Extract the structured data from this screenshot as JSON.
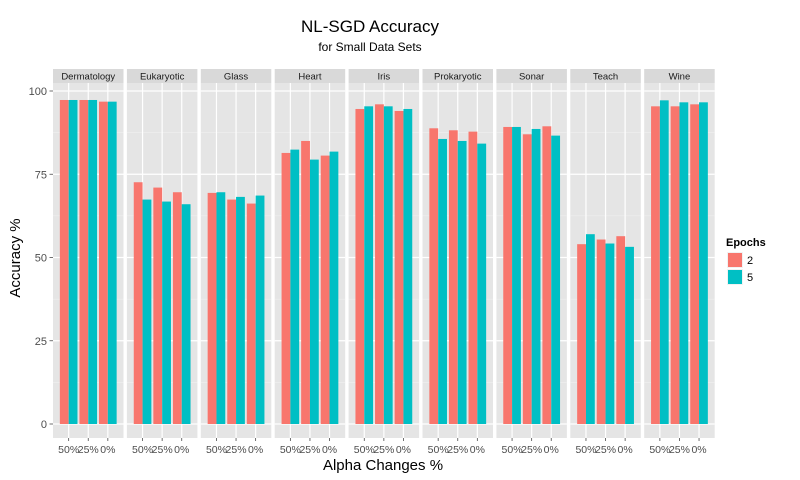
{
  "chart_data": {
    "type": "bar",
    "title": "NL-SGD Accuracy",
    "subtitle": "for Small Data Sets",
    "xlabel": "Alpha Changes %",
    "ylabel": "Accuracy %",
    "ylim": [
      0,
      100
    ],
    "yticks": [
      0,
      25,
      50,
      75,
      100
    ],
    "categories": [
      "50%",
      "25%",
      "0%"
    ],
    "legend": {
      "title": "Epochs",
      "position": "right",
      "entries": [
        {
          "label": "2",
          "color": "#F8766D"
        },
        {
          "label": "5",
          "color": "#00BFC4"
        }
      ]
    },
    "facets": [
      {
        "name": "Dermatology",
        "series": [
          {
            "epochs": "2",
            "values": [
              97.3,
              97.3,
              96.8
            ]
          },
          {
            "epochs": "5",
            "values": [
              97.3,
              97.3,
              96.8
            ]
          }
        ]
      },
      {
        "name": "Eukaryotic",
        "series": [
          {
            "epochs": "2",
            "values": [
              72.6,
              71.0,
              69.6
            ]
          },
          {
            "epochs": "5",
            "values": [
              67.4,
              66.8,
              66.0
            ]
          }
        ]
      },
      {
        "name": "Glass",
        "series": [
          {
            "epochs": "2",
            "values": [
              69.4,
              67.4,
              66.2
            ]
          },
          {
            "epochs": "5",
            "values": [
              69.6,
              68.2,
              68.6
            ]
          }
        ]
      },
      {
        "name": "Heart",
        "series": [
          {
            "epochs": "2",
            "values": [
              81.4,
              85.0,
              80.6
            ]
          },
          {
            "epochs": "5",
            "values": [
              82.4,
              79.4,
              81.8
            ]
          }
        ]
      },
      {
        "name": "Iris",
        "series": [
          {
            "epochs": "2",
            "values": [
              94.6,
              96.0,
              94.0
            ]
          },
          {
            "epochs": "5",
            "values": [
              95.4,
              95.4,
              94.6
            ]
          }
        ]
      },
      {
        "name": "Prokaryotic",
        "series": [
          {
            "epochs": "2",
            "values": [
              88.8,
              88.2,
              87.8
            ]
          },
          {
            "epochs": "5",
            "values": [
              85.6,
              85.0,
              84.2
            ]
          }
        ]
      },
      {
        "name": "Sonar",
        "series": [
          {
            "epochs": "2",
            "values": [
              89.2,
              87.0,
              89.4
            ]
          },
          {
            "epochs": "5",
            "values": [
              89.2,
              88.6,
              86.6
            ]
          }
        ]
      },
      {
        "name": "Teach",
        "series": [
          {
            "epochs": "2",
            "values": [
              54.0,
              55.4,
              56.4
            ]
          },
          {
            "epochs": "5",
            "values": [
              57.0,
              54.2,
              53.2
            ]
          }
        ]
      },
      {
        "name": "Wine",
        "series": [
          {
            "epochs": "2",
            "values": [
              95.4,
              95.4,
              96.0
            ]
          },
          {
            "epochs": "5",
            "values": [
              97.2,
              96.6,
              96.6
            ]
          }
        ]
      }
    ]
  }
}
